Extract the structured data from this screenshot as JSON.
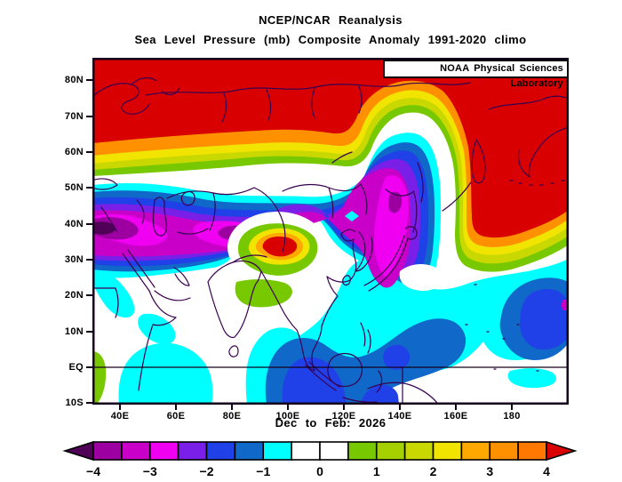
{
  "header": {
    "title": "NCEP/NCAR Reanalysis",
    "subtitle": "Sea Level Pressure (mb) Composite Anomaly 1991-2020 climo"
  },
  "map": {
    "credit": "NOAA Physical Sciences Laboratory",
    "caption": "Dec to Feb: 2026",
    "lat_ticks": [
      "80N",
      "70N",
      "60N",
      "50N",
      "40N",
      "30N",
      "20N",
      "10N",
      "EQ",
      "10S"
    ],
    "lon_ticks": [
      "40E",
      "60E",
      "80E",
      "100E",
      "120E",
      "140E",
      "160E",
      "180"
    ]
  },
  "colorbar": {
    "tick_labels": [
      "-4",
      "-3",
      "-2",
      "-1",
      "0",
      "1",
      "2",
      "3",
      "4"
    ],
    "cell_colors": [
      "#9C00A0",
      "#C800C8",
      "#F000F0",
      "#7A1FE8",
      "#2040E8",
      "#1068C8",
      "#00FFFF",
      "#FFFFFF",
      "#FFFFFF",
      "#78C800",
      "#A4D000",
      "#C8D800",
      "#F0E400",
      "#FFA800",
      "#FF9000",
      "#FF7800"
    ],
    "left_arrow_color": "#500057",
    "right_arrow_color": "#D80000",
    "outline": "#000000"
  },
  "chart_data": {
    "type": "heatmap",
    "map_type": "filled_contour_map",
    "source": "NCEP/NCAR Reanalysis",
    "variable": "Sea Level Pressure Composite Anomaly",
    "units": "mb",
    "season": "Dec to Feb: 2026",
    "climatology": "1991-2020 climo",
    "credit": "NOAA Physical Sciences Laboratory",
    "lon_range_deg_east": [
      30,
      200
    ],
    "lat_range": [
      "10S",
      "85N"
    ],
    "contour_interval_mb": 0.5,
    "levels": [
      -4,
      -3.5,
      -3,
      -2.5,
      -2,
      -1.5,
      -1,
      -0.5,
      0,
      0.5,
      1,
      1.5,
      2,
      2.5,
      3,
      3.5,
      4
    ],
    "palette": {
      "below_m4": "#500057",
      "m4": "#9C00A0",
      "m35": "#C800C8",
      "m3": "#F000F0",
      "m25": "#7A1FE8",
      "m2": "#2040E8",
      "m15": "#1068C8",
      "m1": "#00FFFF",
      "zero": "#FFFFFF",
      "p05": "#78C800",
      "p1": "#A4D000",
      "p15": "#C8D800",
      "p2": "#F0E400",
      "p25": "#FFA800",
      "p3": "#FF9000",
      "p35": "#FF7800",
      "above_p4": "#D80000",
      "coast": "#3A0050",
      "frame": "#14021c"
    },
    "features": [
      {
        "region": "Arctic and northern Siberia (north of ~60N, 30E-140E)",
        "anomaly_mb": "greater than +4"
      },
      {
        "region": "North Pacific / Bering Sea / Chukotka (145E-160W, 35N-80N)",
        "anomaly_mb": "greater than +4"
      },
      {
        "region": "Central Asia belt (30E-100E, 35N-50N)",
        "anomaly_mb": "-2 to below -4 (dark cores near 35E-45E, 40N-45N)"
      },
      {
        "region": "Northeast China / Amur / Korea lobe (100E-135E, 35N-60N)",
        "anomaly_mb": "-2 to -3.5"
      },
      {
        "region": "Tibetan Plateau bullseye (85E-100E, 27N-34N)",
        "anomaly_mb": "+2 to above +4"
      },
      {
        "region": "Northeast India / Bangladesh patch (80E-95E, 18N-25N)",
        "anomaly_mb": "+0.5 to +1"
      },
      {
        "region": "East Africa equatorial strip (~30E-35E, 10S-5N)",
        "anomaly_mb": "+0.5 to +1"
      },
      {
        "region": "Bay of Bengal through Indonesia and Philippine Sea",
        "anomaly_mb": "-1 to -2.5"
      },
      {
        "region": "Subtropical central Pacific (170E-165W, 18N-33N)",
        "anomaly_mb": "-1.5 to -3 with small -3.5 spot at eastern edge"
      },
      {
        "region": "Arabia, India interior, equatorial central Pacific",
        "anomaly_mb": "-0.5 to +0.5 (near zero, white)"
      }
    ]
  }
}
